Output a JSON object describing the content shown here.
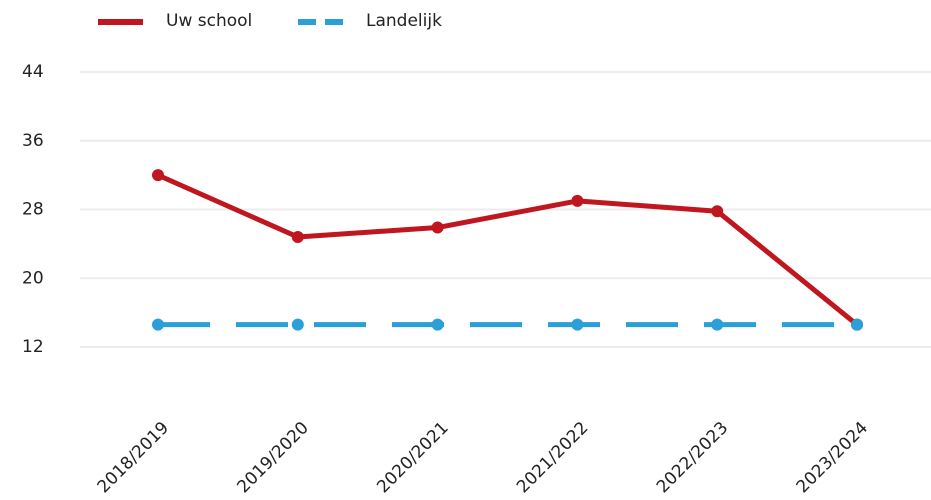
{
  "chart_data": {
    "type": "line",
    "categories": [
      "2018/2019",
      "2019/2020",
      "2020/2021",
      "2021/2022",
      "2022/2023",
      "2023/2024"
    ],
    "series": [
      {
        "name": "Uw school",
        "color": "#c0161f",
        "dash": false,
        "values": [
          32,
          24.8,
          25.9,
          29,
          27.8,
          14.6
        ]
      },
      {
        "name": "Landelijk",
        "color": "#2a9fd8",
        "dash": true,
        "values": [
          14.6,
          14.6,
          14.6,
          14.6,
          14.6,
          14.6
        ]
      }
    ],
    "ylim": [
      12,
      44
    ],
    "yticks": [
      12,
      20,
      28,
      36,
      44
    ],
    "grid": true
  }
}
